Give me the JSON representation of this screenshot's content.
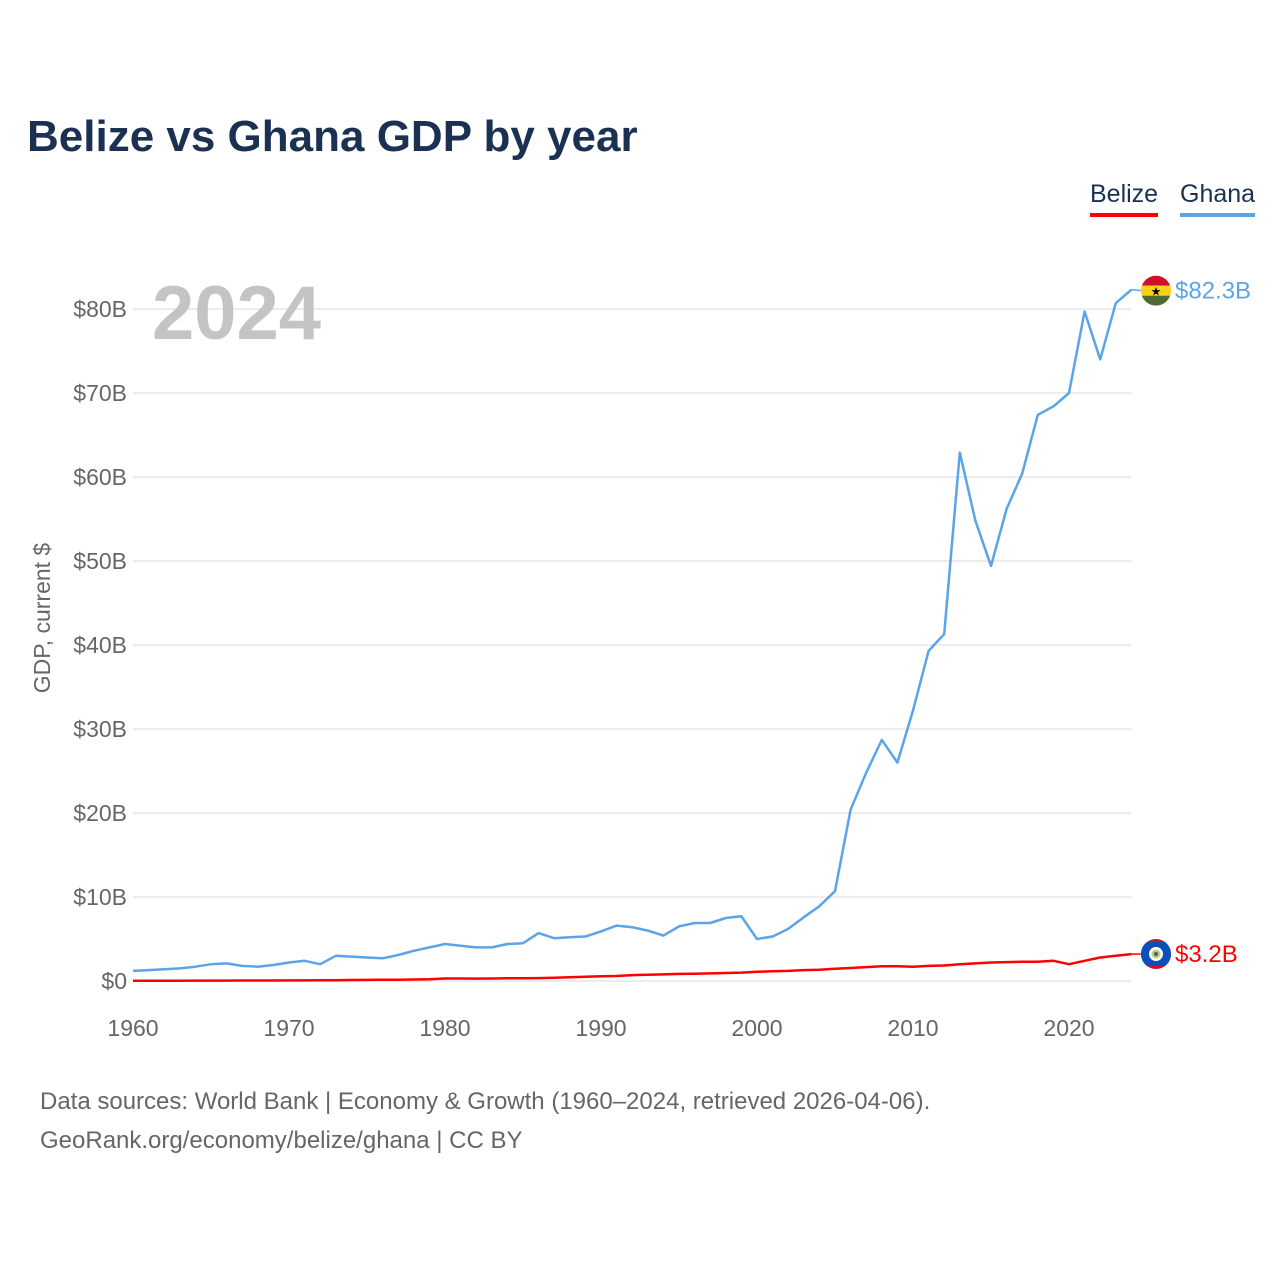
{
  "title": "Belize vs Ghana GDP by year",
  "legend": [
    "Belize",
    "Ghana"
  ],
  "year_label": "2024",
  "footer": {
    "line1": "Data sources: World Bank | Economy & Growth (1960–2024, retrieved 2026-04-06).",
    "line2": "GeoRank.org/economy/belize/ghana | CC BY"
  },
  "chart_data": {
    "type": "line",
    "title": "Belize vs Ghana GDP by year",
    "xlabel": "",
    "ylabel": "GDP, current $",
    "xlim": [
      1960,
      2024
    ],
    "ylim": [
      0,
      85
    ],
    "xticks": [
      1960,
      1970,
      1980,
      1990,
      2000,
      2010,
      2020
    ],
    "xtick_labels": [
      "1960",
      "1970",
      "1980",
      "1990",
      "2000",
      "2010",
      "2020"
    ],
    "yticks": [
      0,
      10,
      20,
      30,
      40,
      50,
      60,
      70,
      80
    ],
    "ytick_labels": [
      "$0",
      "$10B",
      "$20B",
      "$30B",
      "$40B",
      "$50B",
      "$60B",
      "$70B",
      "$80B"
    ],
    "grid": true,
    "legend_position": "top-right",
    "x_start": 1960,
    "series": [
      {
        "name": "Belize",
        "color": "#ff0000",
        "end_label": "$3.2B",
        "flag": "belize-flag",
        "values": [
          0.03,
          0.03,
          0.04,
          0.04,
          0.05,
          0.05,
          0.05,
          0.06,
          0.06,
          0.06,
          0.07,
          0.07,
          0.08,
          0.1,
          0.12,
          0.13,
          0.14,
          0.16,
          0.18,
          0.2,
          0.3,
          0.3,
          0.28,
          0.3,
          0.32,
          0.33,
          0.34,
          0.38,
          0.44,
          0.5,
          0.56,
          0.6,
          0.7,
          0.75,
          0.79,
          0.85,
          0.87,
          0.9,
          0.95,
          1.0,
          1.1,
          1.15,
          1.2,
          1.3,
          1.35,
          1.45,
          1.55,
          1.65,
          1.75,
          1.75,
          1.7,
          1.8,
          1.85,
          2.0,
          2.1,
          2.2,
          2.25,
          2.3,
          2.3,
          2.4,
          2.0,
          2.4,
          2.8,
          3.0,
          3.2
        ]
      },
      {
        "name": "Ghana",
        "color": "#5ba4e8",
        "end_label": "$82.3B",
        "flag": "ghana-flag",
        "values": [
          1.2,
          1.3,
          1.4,
          1.5,
          1.7,
          2.0,
          2.1,
          1.8,
          1.7,
          1.9,
          2.2,
          2.4,
          2.0,
          3.0,
          2.9,
          2.8,
          2.7,
          3.1,
          3.6,
          4.0,
          4.4,
          4.2,
          4.0,
          4.0,
          4.4,
          4.5,
          5.7,
          5.1,
          5.2,
          5.3,
          5.9,
          6.6,
          6.4,
          6.0,
          5.4,
          6.5,
          6.9,
          6.9,
          7.5,
          7.7,
          5.0,
          5.3,
          6.2,
          7.6,
          8.9,
          10.7,
          20.4,
          24.8,
          28.7,
          26.0,
          32.2,
          39.3,
          41.3,
          62.9,
          54.8,
          49.4,
          56.2,
          60.4,
          67.4,
          68.4,
          70.0,
          79.7,
          74.0,
          80.7,
          82.3
        ]
      }
    ]
  }
}
